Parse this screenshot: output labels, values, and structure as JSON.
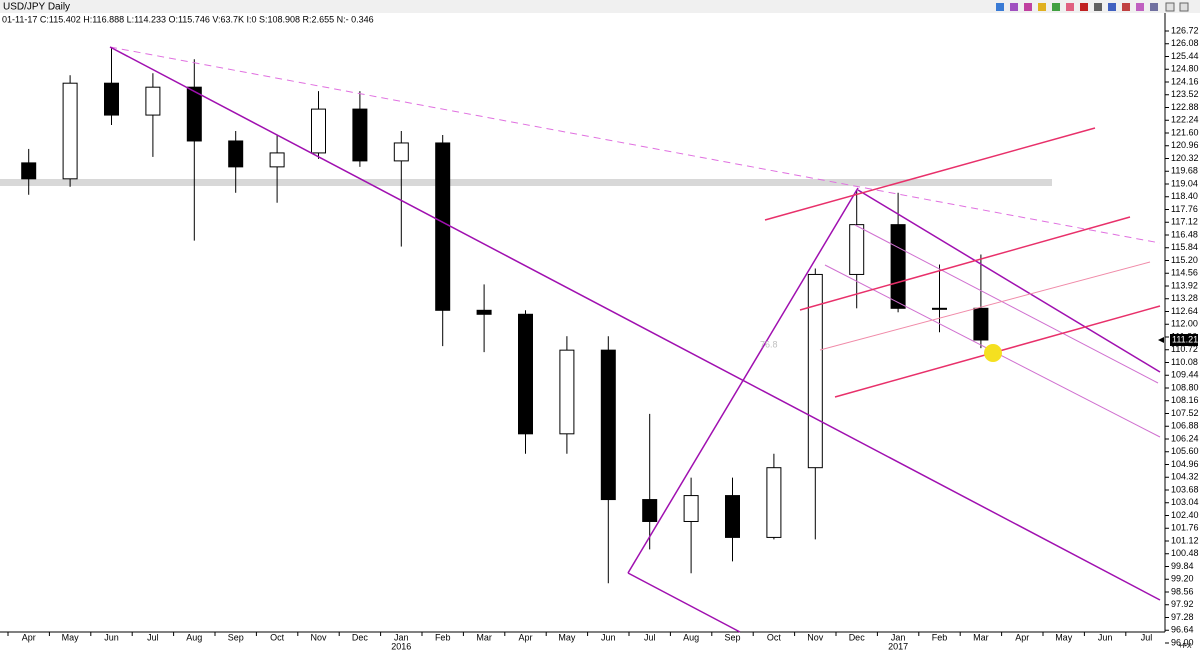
{
  "chart_data": {
    "type": "candlestick",
    "title": "USD/JPY Daily",
    "info": "01-11-17 C:115.402 H:116.888 L:114.233 O:115.746 V:63.7K I:0 S:108.908 R:2.655 N:- 0.346",
    "categories": [
      "Apr",
      "May",
      "Jun",
      "Jul",
      "Aug",
      "Sep",
      "Oct",
      "Nov",
      "Dec",
      "Jan",
      "Feb",
      "Mar",
      "Apr",
      "May",
      "Jun",
      "Jul",
      "Aug",
      "Sep",
      "Oct",
      "Nov",
      "Dec",
      "Jan",
      "Feb",
      "Mar",
      "Apr",
      "May",
      "Jun",
      "Jul"
    ],
    "x_sublabels": [
      null,
      null,
      null,
      null,
      null,
      null,
      null,
      null,
      null,
      "2016",
      null,
      null,
      null,
      null,
      null,
      null,
      null,
      null,
      null,
      null,
      null,
      "2017",
      null,
      null,
      null,
      null,
      null,
      null
    ],
    "open": [
      120.1,
      119.3,
      124.1,
      122.5,
      123.9,
      121.2,
      119.9,
      120.6,
      122.8,
      120.2,
      121.1,
      112.7,
      112.5,
      106.5,
      110.7,
      103.2,
      102.1,
      103.4,
      101.3,
      104.8,
      114.5,
      117.0,
      112.8,
      112.8,
      null,
      null,
      null,
      null
    ],
    "high": [
      120.8,
      124.5,
      125.85,
      124.6,
      125.3,
      121.7,
      121.5,
      123.7,
      123.7,
      121.7,
      121.5,
      114.0,
      112.7,
      111.4,
      111.4,
      107.5,
      104.3,
      104.3,
      105.5,
      114.8,
      118.7,
      118.6,
      115.0,
      115.5,
      null,
      null,
      null,
      null
    ],
    "low": [
      118.5,
      118.9,
      122.0,
      120.4,
      116.2,
      118.6,
      118.1,
      120.3,
      119.9,
      115.9,
      110.9,
      110.6,
      105.5,
      105.5,
      99.0,
      100.7,
      99.5,
      100.1,
      101.2,
      101.2,
      112.8,
      112.6,
      111.6,
      110.8,
      null,
      null,
      null,
      null
    ],
    "close": [
      119.3,
      124.1,
      122.5,
      123.9,
      121.2,
      119.9,
      120.6,
      122.8,
      120.2,
      121.1,
      112.7,
      112.5,
      106.5,
      110.7,
      103.2,
      102.1,
      103.4,
      101.3,
      104.8,
      114.5,
      117.0,
      112.8,
      112.8,
      111.21,
      null,
      null,
      null,
      null
    ],
    "last_price": 111.21,
    "annotation": "76.8",
    "corner_label": "+FX",
    "ylim": [
      96.0,
      126.72
    ],
    "yticks": [
      126.72,
      126.08,
      125.44,
      {
        "value": 124.8,
        "label": "124.80"
      },
      124.16,
      123.52,
      122.88,
      122.24,
      {
        "value": 121.6,
        "label": "121.60"
      },
      120.96,
      120.32,
      119.68,
      119.04,
      {
        "value": 118.4,
        "label": "118.40"
      },
      117.76,
      117.12,
      116.48,
      115.84,
      {
        "value": 115.2,
        "label": "115.20"
      },
      114.56,
      113.92,
      113.28,
      112.64,
      {
        "value": 112.0,
        "label": "112.00"
      },
      111.36,
      110.72,
      110.08,
      109.44,
      {
        "value": 108.8,
        "label": "108.80"
      },
      108.16,
      107.52,
      106.88,
      106.24,
      {
        "value": 105.6,
        "label": "105.60"
      },
      104.96,
      104.32,
      103.68,
      103.04,
      {
        "value": 102.4,
        "label": "102.40"
      },
      101.76,
      101.12,
      100.48,
      99.84,
      {
        "value": 99.2,
        "label": "99.20"
      },
      98.56,
      97.92,
      97.28,
      96.64,
      {
        "value": 96.0,
        "label": "96.00"
      }
    ],
    "up_color": "#ffffff",
    "down_color": "#000000"
  }
}
